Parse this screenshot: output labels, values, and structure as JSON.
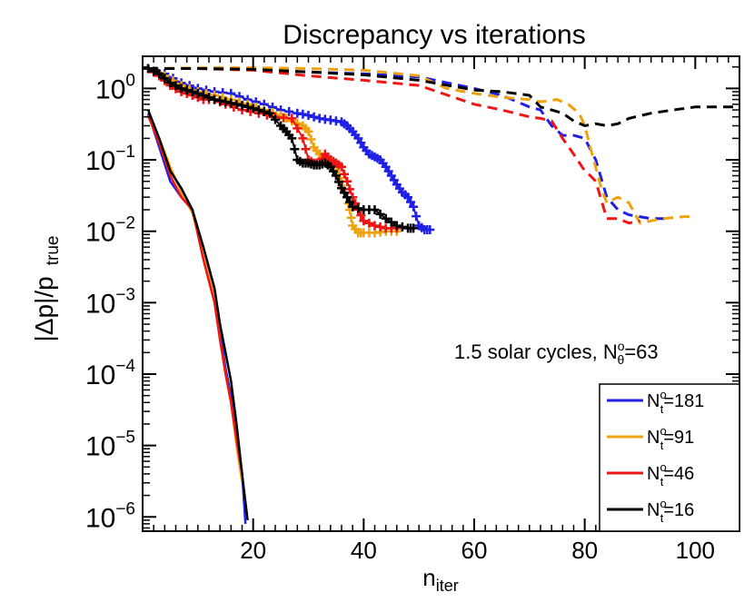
{
  "chart_data": {
    "type": "line",
    "title": "Discrepancy vs iterations",
    "xlabel_main": "n",
    "xlabel_sub": "iter",
    "ylabel": "|Δp|/p",
    "ylabel_sub": "true",
    "xlim": [
      0,
      108
    ],
    "ylim_log10": [
      -6.2,
      0.45
    ],
    "yscale": "log",
    "x_ticks": [
      20,
      40,
      60,
      80,
      100
    ],
    "x_tick_labels": [
      "20",
      "40",
      "60",
      "80",
      "100"
    ],
    "y_ticks_log10": [
      0,
      -1,
      -2,
      -3,
      -4,
      -5,
      -6
    ],
    "y_tick_bases": [
      "10",
      "10",
      "10",
      "10",
      "10",
      "10",
      "10"
    ],
    "y_tick_exps": [
      "0",
      "−1",
      "−2",
      "−3",
      "−4",
      "−5",
      "−6"
    ],
    "annotation_main": "1.5 solar cycles, N",
    "annotation_sup": "o",
    "annotation_sub": "θ",
    "annotation_tail": "=63",
    "legend_position": "lower-right",
    "series": [
      {
        "name": "N_t^o=181",
        "label_main": "N",
        "label_sup": "o",
        "label_sub": "t",
        "label_tail": "=181",
        "color": "#1f1fe6",
        "solid": [
          [
            1,
            0.45
          ],
          [
            3,
            0.15
          ],
          [
            5,
            0.05
          ],
          [
            7,
            0.03
          ],
          [
            9,
            0.02
          ],
          [
            11,
            0.0045
          ],
          [
            13,
            0.0012
          ],
          [
            14,
            0.0004
          ],
          [
            15,
            0.00012
          ],
          [
            16,
            5e-05
          ],
          [
            17,
            1.5e-05
          ],
          [
            18,
            4e-06
          ],
          [
            18.6,
            8e-07
          ]
        ],
        "dashed": [
          [
            1,
            1.9
          ],
          [
            10,
            1.9
          ],
          [
            20,
            1.85
          ],
          [
            30,
            1.7
          ],
          [
            40,
            1.6
          ],
          [
            50,
            1.45
          ],
          [
            60,
            1.0
          ],
          [
            65,
            0.8
          ],
          [
            70,
            0.55
          ],
          [
            72,
            0.5
          ],
          [
            74,
            0.3
          ],
          [
            76,
            0.22
          ],
          [
            78,
            0.22
          ],
          [
            80,
            0.2
          ],
          [
            82,
            0.1
          ],
          [
            84,
            0.03
          ],
          [
            86,
            0.02
          ],
          [
            88,
            0.017
          ],
          [
            92,
            0.015
          ],
          [
            95,
            0.015
          ]
        ],
        "cross": [
          [
            1,
            1.9
          ],
          [
            4,
            1.6
          ],
          [
            7,
            1.2
          ],
          [
            10,
            1.0
          ],
          [
            13,
            0.9
          ],
          [
            16,
            0.85
          ],
          [
            19,
            0.7
          ],
          [
            22,
            0.6
          ],
          [
            25,
            0.5
          ],
          [
            28,
            0.45
          ],
          [
            30,
            0.42
          ],
          [
            32,
            0.38
          ],
          [
            34,
            0.36
          ],
          [
            36,
            0.34
          ],
          [
            37,
            0.3
          ],
          [
            38,
            0.25
          ],
          [
            39,
            0.2
          ],
          [
            40,
            0.15
          ],
          [
            41,
            0.12
          ],
          [
            42,
            0.11
          ],
          [
            43,
            0.1
          ],
          [
            44,
            0.08
          ],
          [
            45,
            0.06
          ],
          [
            46,
            0.045
          ],
          [
            47,
            0.035
          ],
          [
            48,
            0.03
          ],
          [
            49,
            0.022
          ],
          [
            50,
            0.012
          ],
          [
            51,
            0.0105
          ],
          [
            52,
            0.0105
          ]
        ]
      },
      {
        "name": "N_t^o=91",
        "label_main": "N",
        "label_sup": "o",
        "label_sub": "t",
        "label_tail": "=91",
        "color": "#f0a20d",
        "solid": [
          [
            1,
            0.4
          ],
          [
            3,
            0.2
          ],
          [
            5,
            0.08
          ],
          [
            7,
            0.035
          ],
          [
            9,
            0.018
          ],
          [
            11,
            0.005
          ],
          [
            13,
            0.0013
          ],
          [
            14,
            0.0003
          ],
          [
            15,
            0.0001
          ],
          [
            16,
            4e-05
          ],
          [
            17,
            1e-05
          ],
          [
            18,
            3e-06
          ]
        ],
        "dashed": [
          [
            1,
            1.9
          ],
          [
            10,
            1.95
          ],
          [
            20,
            1.95
          ],
          [
            30,
            1.9
          ],
          [
            40,
            1.8
          ],
          [
            50,
            1.5
          ],
          [
            55,
            1.0
          ],
          [
            60,
            0.85
          ],
          [
            65,
            0.75
          ],
          [
            70,
            0.7
          ],
          [
            72,
            0.65
          ],
          [
            75,
            0.7
          ],
          [
            77,
            0.6
          ],
          [
            79,
            0.45
          ],
          [
            80,
            0.3
          ],
          [
            81,
            0.15
          ],
          [
            83,
            0.04
          ],
          [
            84,
            0.025
          ],
          [
            86,
            0.03
          ],
          [
            88,
            0.025
          ],
          [
            90,
            0.013
          ],
          [
            94,
            0.015
          ],
          [
            98,
            0.016
          ],
          [
            100,
            0.016
          ]
        ],
        "cross": [
          [
            1,
            1.9
          ],
          [
            4,
            1.5
          ],
          [
            7,
            1.1
          ],
          [
            10,
            0.9
          ],
          [
            13,
            0.8
          ],
          [
            16,
            0.7
          ],
          [
            19,
            0.6
          ],
          [
            22,
            0.5
          ],
          [
            25,
            0.42
          ],
          [
            27,
            0.35
          ],
          [
            29,
            0.3
          ],
          [
            30,
            0.25
          ],
          [
            31,
            0.15
          ],
          [
            32,
            0.12
          ],
          [
            33,
            0.1
          ],
          [
            34,
            0.09
          ],
          [
            35,
            0.08
          ],
          [
            36,
            0.05
          ],
          [
            37,
            0.03
          ],
          [
            37.5,
            0.02
          ],
          [
            38,
            0.012
          ],
          [
            39,
            0.0095
          ],
          [
            40,
            0.0095
          ],
          [
            42,
            0.0095
          ],
          [
            44,
            0.01
          ],
          [
            46,
            0.01
          ]
        ]
      },
      {
        "name": "N_t^o=46",
        "label_main": "N",
        "label_sup": "o",
        "label_sub": "t",
        "label_tail": "=46",
        "color": "#f01515",
        "solid": [
          [
            1,
            0.42
          ],
          [
            3,
            0.17
          ],
          [
            5,
            0.06
          ],
          [
            7,
            0.03
          ],
          [
            9,
            0.02
          ],
          [
            11,
            0.004
          ],
          [
            13,
            0.001
          ],
          [
            14,
            0.0003
          ],
          [
            15,
            0.0001
          ],
          [
            16,
            4e-05
          ],
          [
            17,
            1.2e-05
          ],
          [
            18,
            4e-06
          ]
        ],
        "dashed": [
          [
            1,
            1.9
          ],
          [
            10,
            1.9
          ],
          [
            20,
            1.8
          ],
          [
            30,
            1.5
          ],
          [
            40,
            1.3
          ],
          [
            50,
            1.1
          ],
          [
            60,
            0.6
          ],
          [
            65,
            0.5
          ],
          [
            70,
            0.4
          ],
          [
            72,
            0.38
          ],
          [
            74,
            0.35
          ],
          [
            76,
            0.2
          ],
          [
            78,
            0.12
          ],
          [
            80,
            0.07
          ],
          [
            81,
            0.06
          ],
          [
            82,
            0.05
          ],
          [
            84,
            0.015
          ],
          [
            86,
            0.015
          ],
          [
            88,
            0.013
          ],
          [
            90,
            0.014
          ]
        ],
        "cross": [
          [
            1,
            1.9
          ],
          [
            3,
            1.5
          ],
          [
            5,
            1.1
          ],
          [
            7,
            0.9
          ],
          [
            9,
            0.8
          ],
          [
            11,
            0.7
          ],
          [
            13,
            0.7
          ],
          [
            15,
            0.6
          ],
          [
            18,
            0.5
          ],
          [
            21,
            0.45
          ],
          [
            24,
            0.4
          ],
          [
            27,
            0.38
          ],
          [
            29,
            0.2
          ],
          [
            30,
            0.1
          ],
          [
            31,
            0.09
          ],
          [
            32,
            0.09
          ],
          [
            33,
            0.12
          ],
          [
            34,
            0.1
          ],
          [
            35,
            0.09
          ],
          [
            36,
            0.08
          ],
          [
            37,
            0.05
          ],
          [
            38,
            0.03
          ],
          [
            39,
            0.02
          ],
          [
            40,
            0.014
          ],
          [
            42,
            0.012
          ],
          [
            44,
            0.011
          ],
          [
            46,
            0.011
          ]
        ]
      },
      {
        "name": "N_t^o=16",
        "label_main": "N",
        "label_sup": "o",
        "label_sub": "t",
        "label_tail": "=16",
        "color": "#000000",
        "solid": [
          [
            1,
            0.5
          ],
          [
            3,
            0.2
          ],
          [
            5,
            0.07
          ],
          [
            7,
            0.04
          ],
          [
            9,
            0.02
          ],
          [
            11,
            0.006
          ],
          [
            13,
            0.0016
          ],
          [
            14,
            0.0005
          ],
          [
            15,
            0.0002
          ],
          [
            16,
            8e-05
          ],
          [
            17,
            2e-05
          ],
          [
            18,
            4e-06
          ],
          [
            19,
            9e-07
          ]
        ],
        "dashed": [
          [
            1,
            1.9
          ],
          [
            10,
            1.9
          ],
          [
            20,
            1.85
          ],
          [
            30,
            1.7
          ],
          [
            40,
            1.55
          ],
          [
            50,
            1.3
          ],
          [
            60,
            0.95
          ],
          [
            65,
            0.9
          ],
          [
            70,
            0.8
          ],
          [
            72,
            0.55
          ],
          [
            74,
            0.5
          ],
          [
            76,
            0.45
          ],
          [
            78,
            0.35
          ],
          [
            80,
            0.3
          ],
          [
            82,
            0.32
          ],
          [
            84,
            0.3
          ],
          [
            86,
            0.32
          ],
          [
            88,
            0.38
          ],
          [
            92,
            0.45
          ],
          [
            96,
            0.5
          ],
          [
            100,
            0.55
          ],
          [
            104,
            0.55
          ],
          [
            108,
            0.55
          ]
        ],
        "cross": [
          [
            1,
            1.9
          ],
          [
            3,
            1.6
          ],
          [
            5,
            1.2
          ],
          [
            7,
            1.0
          ],
          [
            9,
            0.9
          ],
          [
            11,
            0.8
          ],
          [
            13,
            0.7
          ],
          [
            15,
            0.65
          ],
          [
            17,
            0.6
          ],
          [
            19,
            0.55
          ],
          [
            21,
            0.5
          ],
          [
            23,
            0.45
          ],
          [
            25,
            0.3
          ],
          [
            26,
            0.25
          ],
          [
            27,
            0.2
          ],
          [
            28,
            0.1
          ],
          [
            29,
            0.09
          ],
          [
            30,
            0.09
          ],
          [
            31,
            0.085
          ],
          [
            32,
            0.085
          ],
          [
            33,
            0.09
          ],
          [
            34,
            0.08
          ],
          [
            35,
            0.06
          ],
          [
            36,
            0.04
          ],
          [
            37,
            0.03
          ],
          [
            38,
            0.022
          ],
          [
            40,
            0.02
          ],
          [
            42,
            0.02
          ],
          [
            44,
            0.015
          ],
          [
            46,
            0.012
          ],
          [
            48,
            0.011
          ],
          [
            49,
            0.011
          ]
        ]
      }
    ]
  }
}
